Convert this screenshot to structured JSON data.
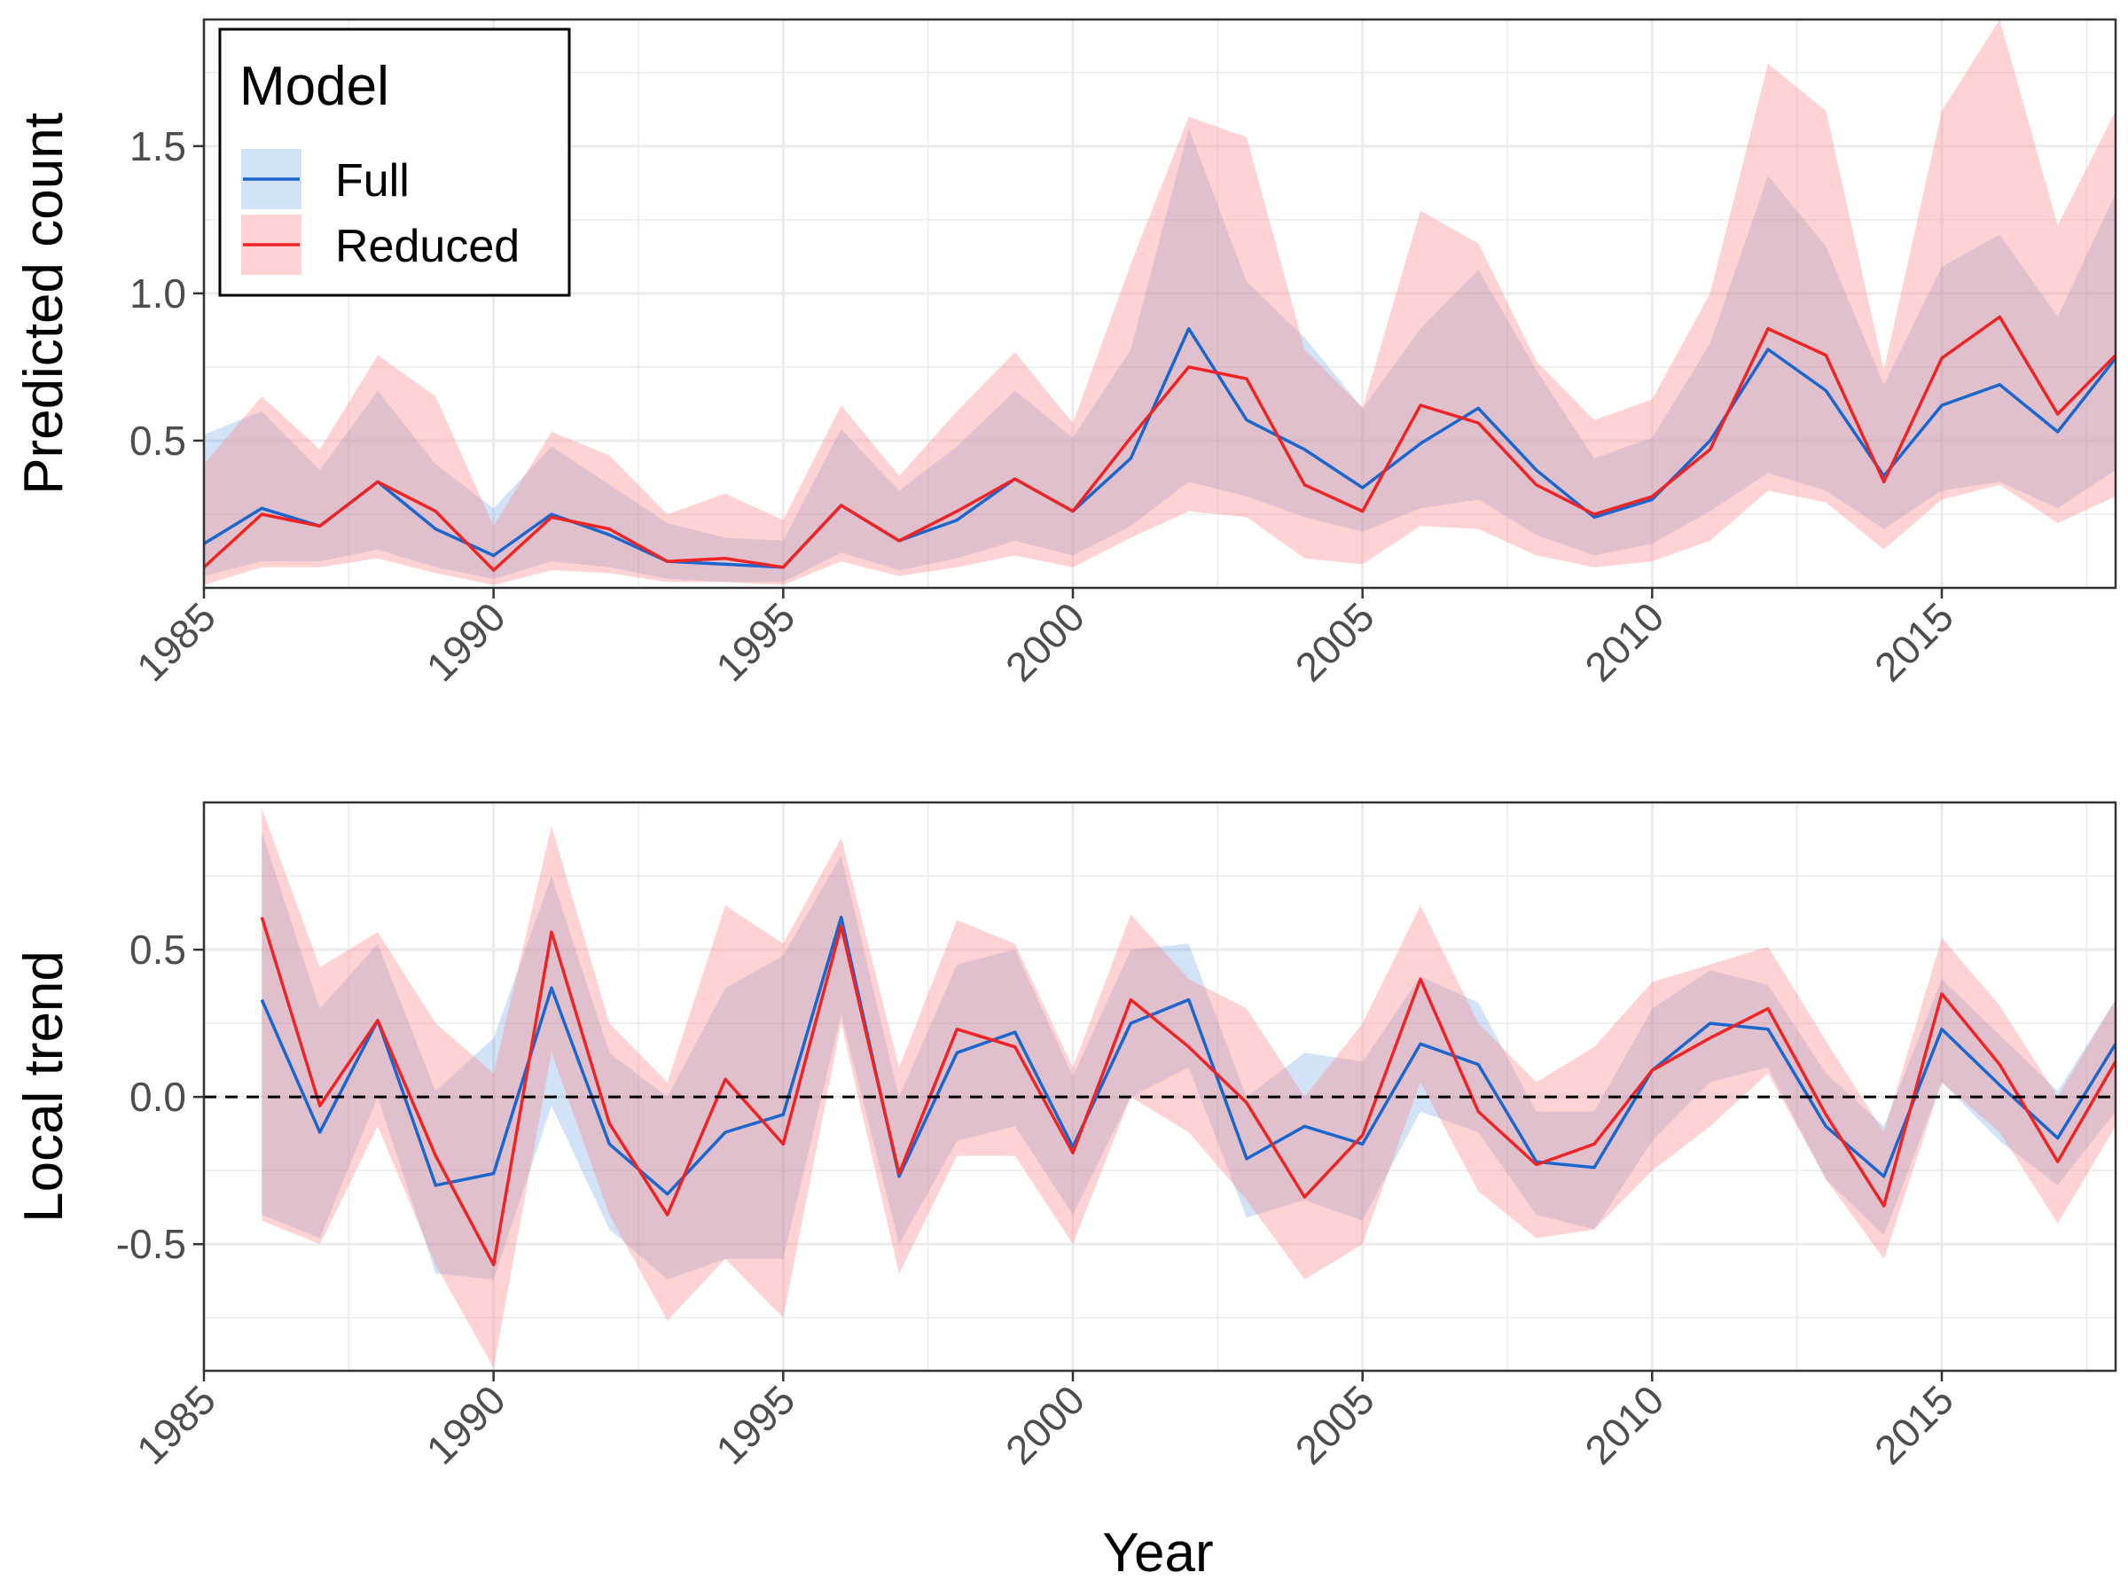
{
  "legend": {
    "title": "Model",
    "items": [
      {
        "label": "Full",
        "fill": "#1f6fd6",
        "line": "#1a66cc"
      },
      {
        "label": "Reduced",
        "fill": "#ff8080",
        "line": "#ee2424"
      }
    ]
  },
  "xlabel": "Year",
  "chart_data": [
    {
      "type": "line",
      "title": "",
      "xlabel": "",
      "ylabel": "Predicted count",
      "xlim": [
        1985,
        2018
      ],
      "ylim": [
        0,
        1.93
      ],
      "xticks": [
        1985,
        1990,
        1995,
        2000,
        2005,
        2010,
        2015
      ],
      "yticks": [
        0.5,
        1.0,
        1.5
      ],
      "ytick_labels": [
        "0.5",
        "1.0",
        "1.5"
      ],
      "grid": true,
      "legend_position": "top-left",
      "x": [
        1985,
        1986,
        1987,
        1988,
        1989,
        1990,
        1991,
        1992,
        1993,
        1994,
        1995,
        1996,
        1997,
        1998,
        1999,
        2000,
        2001,
        2002,
        2003,
        2004,
        2005,
        2006,
        2007,
        2008,
        2009,
        2010,
        2011,
        2012,
        2013,
        2014,
        2015,
        2016,
        2017,
        2018
      ],
      "series": [
        {
          "name": "Full",
          "color": "#1a66cc",
          "band_color": "#1f6fd6",
          "values": [
            0.15,
            0.27,
            0.21,
            0.36,
            0.2,
            0.11,
            0.25,
            0.18,
            0.09,
            0.08,
            0.07,
            0.28,
            0.16,
            0.23,
            0.37,
            0.26,
            0.44,
            0.88,
            0.57,
            0.47,
            0.34,
            0.49,
            0.61,
            0.4,
            0.24,
            0.3,
            0.5,
            0.81,
            0.67,
            0.38,
            0.62,
            0.69,
            0.53,
            0.78
          ],
          "lower": [
            0.04,
            0.09,
            0.09,
            0.13,
            0.07,
            0.03,
            0.09,
            0.07,
            0.03,
            0.02,
            0.02,
            0.12,
            0.06,
            0.1,
            0.16,
            0.11,
            0.21,
            0.36,
            0.31,
            0.24,
            0.19,
            0.27,
            0.3,
            0.18,
            0.11,
            0.15,
            0.26,
            0.39,
            0.33,
            0.2,
            0.33,
            0.36,
            0.27,
            0.4
          ],
          "upper": [
            0.52,
            0.6,
            0.4,
            0.67,
            0.42,
            0.27,
            0.48,
            0.35,
            0.22,
            0.17,
            0.16,
            0.54,
            0.33,
            0.48,
            0.67,
            0.51,
            0.81,
            1.56,
            1.04,
            0.85,
            0.61,
            0.88,
            1.08,
            0.74,
            0.44,
            0.51,
            0.83,
            1.4,
            1.16,
            0.69,
            1.09,
            1.2,
            0.92,
            1.34
          ]
        },
        {
          "name": "Reduced",
          "color": "#ee2424",
          "band_color": "#ff8080",
          "values": [
            0.07,
            0.25,
            0.21,
            0.36,
            0.26,
            0.06,
            0.24,
            0.2,
            0.09,
            0.1,
            0.07,
            0.28,
            0.16,
            0.26,
            0.37,
            0.26,
            0.51,
            0.75,
            0.71,
            0.35,
            0.26,
            0.62,
            0.56,
            0.35,
            0.25,
            0.31,
            0.47,
            0.88,
            0.79,
            0.36,
            0.78,
            0.92,
            0.59,
            0.79
          ],
          "lower": [
            0.01,
            0.07,
            0.07,
            0.1,
            0.05,
            0.01,
            0.06,
            0.05,
            0.02,
            0.02,
            0.01,
            0.09,
            0.04,
            0.07,
            0.11,
            0.07,
            0.17,
            0.26,
            0.24,
            0.1,
            0.08,
            0.21,
            0.2,
            0.11,
            0.07,
            0.09,
            0.16,
            0.33,
            0.29,
            0.13,
            0.3,
            0.35,
            0.22,
            0.31
          ],
          "upper": [
            0.42,
            0.65,
            0.47,
            0.79,
            0.65,
            0.21,
            0.53,
            0.45,
            0.25,
            0.32,
            0.23,
            0.62,
            0.38,
            0.6,
            0.8,
            0.56,
            1.1,
            1.6,
            1.53,
            0.81,
            0.61,
            1.28,
            1.17,
            0.77,
            0.57,
            0.64,
            1.0,
            1.78,
            1.62,
            0.74,
            1.62,
            1.93,
            1.23,
            1.62
          ]
        }
      ]
    },
    {
      "type": "line",
      "title": "",
      "xlabel": "Year",
      "ylabel": "Local trend",
      "xlim": [
        1985,
        2018
      ],
      "ylim": [
        -0.93,
        1.0
      ],
      "xticks": [
        1985,
        1990,
        1995,
        2000,
        2005,
        2010,
        2015
      ],
      "yticks": [
        -0.5,
        0.0,
        0.5
      ],
      "ytick_labels": [
        "-0.5",
        "0.0",
        "0.5"
      ],
      "reference_line": 0.0,
      "grid": true,
      "x": [
        1986,
        1987,
        1988,
        1989,
        1990,
        1991,
        1992,
        1993,
        1994,
        1995,
        1996,
        1997,
        1998,
        1999,
        2000,
        2001,
        2002,
        2003,
        2004,
        2005,
        2006,
        2007,
        2008,
        2009,
        2010,
        2011,
        2012,
        2013,
        2014,
        2015,
        2016,
        2017,
        2018
      ],
      "series": [
        {
          "name": "Full",
          "color": "#1a66cc",
          "band_color": "#1f6fd6",
          "values": [
            0.33,
            -0.12,
            0.26,
            -0.3,
            -0.26,
            0.37,
            -0.16,
            -0.33,
            -0.12,
            -0.06,
            0.61,
            -0.27,
            0.15,
            0.22,
            -0.17,
            0.25,
            0.33,
            -0.21,
            -0.1,
            -0.16,
            0.18,
            0.11,
            -0.22,
            -0.24,
            0.09,
            0.25,
            0.23,
            -0.1,
            -0.27,
            0.23,
            0.04,
            -0.14,
            0.18
          ],
          "lower": [
            -0.4,
            -0.48,
            0.0,
            -0.6,
            -0.62,
            -0.03,
            -0.45,
            -0.62,
            -0.55,
            -0.55,
            0.28,
            -0.5,
            -0.15,
            -0.1,
            -0.4,
            0.0,
            0.1,
            -0.41,
            -0.35,
            -0.42,
            -0.05,
            -0.12,
            -0.4,
            -0.45,
            -0.15,
            0.05,
            0.1,
            -0.28,
            -0.47,
            0.05,
            -0.15,
            -0.3,
            -0.05
          ],
          "upper": [
            0.9,
            0.3,
            0.52,
            0.02,
            0.2,
            0.75,
            0.15,
            0.0,
            0.37,
            0.48,
            0.82,
            0.0,
            0.45,
            0.5,
            0.07,
            0.5,
            0.52,
            0.0,
            0.15,
            0.12,
            0.41,
            0.32,
            -0.05,
            -0.05,
            0.3,
            0.43,
            0.38,
            0.08,
            -0.1,
            0.4,
            0.21,
            0.02,
            0.33
          ]
        },
        {
          "name": "Reduced",
          "color": "#ee2424",
          "band_color": "#ff8080",
          "values": [
            0.61,
            -0.03,
            0.26,
            -0.2,
            -0.57,
            0.56,
            -0.09,
            -0.4,
            0.06,
            -0.16,
            0.58,
            -0.26,
            0.23,
            0.17,
            -0.19,
            0.33,
            0.17,
            -0.02,
            -0.34,
            -0.13,
            0.4,
            -0.05,
            -0.23,
            -0.16,
            0.09,
            0.2,
            0.3,
            -0.06,
            -0.37,
            0.35,
            0.11,
            -0.22,
            0.12
          ],
          "lower": [
            -0.42,
            -0.5,
            -0.1,
            -0.57,
            -0.92,
            0.15,
            -0.4,
            -0.76,
            -0.55,
            -0.75,
            0.25,
            -0.6,
            -0.2,
            -0.2,
            -0.5,
            0.0,
            -0.12,
            -0.35,
            -0.62,
            -0.5,
            0.05,
            -0.32,
            -0.48,
            -0.45,
            -0.25,
            -0.1,
            0.08,
            -0.28,
            -0.55,
            0.05,
            -0.12,
            -0.43,
            -0.1
          ],
          "upper": [
            0.98,
            0.44,
            0.56,
            0.25,
            0.08,
            0.92,
            0.25,
            0.05,
            0.65,
            0.52,
            0.88,
            0.1,
            0.6,
            0.52,
            0.1,
            0.62,
            0.4,
            0.3,
            0.0,
            0.25,
            0.65,
            0.25,
            0.05,
            0.17,
            0.39,
            0.45,
            0.51,
            0.19,
            -0.12,
            0.54,
            0.31,
            0.0,
            0.33
          ]
        }
      ]
    }
  ]
}
